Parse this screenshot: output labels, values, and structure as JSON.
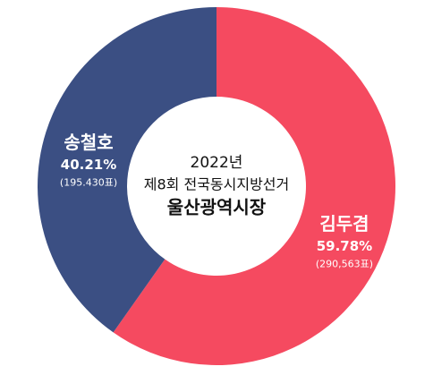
{
  "chart_data": {
    "type": "donut",
    "center_lines": [
      "2022년",
      "제8회 전국동시지방선거",
      "울산광역시장"
    ],
    "categories": [
      "김두겸",
      "송철호"
    ],
    "values": [
      59.78,
      40.21
    ],
    "value_labels": [
      "59.78%",
      "40.21%"
    ],
    "vote_labels": [
      "(290,563표)",
      "(195.430표)"
    ],
    "colors": [
      "#f54a60",
      "#3b4f83"
    ]
  }
}
